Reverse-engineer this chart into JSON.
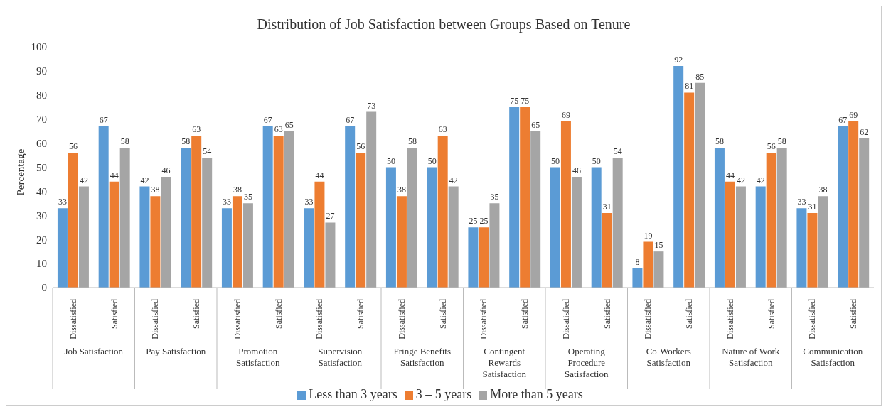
{
  "chart_data": {
    "type": "bar",
    "title": "Distribution of Job Satisfaction between Groups Based on Tenure",
    "ylabel": "Percentage",
    "categories": [
      "Dissatisfied",
      "Satisfied",
      "Dissatisfied",
      "Satisfied",
      "Dissatisfied",
      "Satisfied",
      "Dissatisfied",
      "Satisfied",
      "Dissatisfied",
      "Satisfied",
      "Dissatisfied",
      "Satisfied",
      "Dissatisfied",
      "Satisfied",
      "Dissatisfied",
      "Satisfied",
      "Dissatisfied",
      "Satisfied",
      "Dissatisfied",
      "Satisfied"
    ],
    "annotations": [
      "Job Satisfaction",
      "Pay Satisfaction",
      "Promotion Satisfaction",
      "Supervision Satisfaction",
      "Fringe Benefits Satisfaction",
      "Contingent Rewards Satisfaction",
      "Operating Procedure Satisfaction",
      "Co-Workers Satisfaction",
      "Nature of Work Satisfaction",
      "Communication Satisfaction"
    ],
    "series": [
      {
        "name": "Less than 3 years",
        "color": "#5b9bd5",
        "values": [
          33,
          67,
          42,
          58,
          33,
          67,
          33,
          67,
          50,
          50,
          25,
          75,
          50,
          50,
          8,
          92,
          58,
          42,
          33,
          67
        ]
      },
      {
        "name": "3 – 5 years",
        "color": "#ed7d31",
        "values": [
          56,
          44,
          38,
          63,
          38,
          63,
          44,
          56,
          38,
          63,
          25,
          75,
          69,
          31,
          19,
          81,
          44,
          56,
          31,
          69
        ]
      },
      {
        "name": "More than 5 years",
        "color": "#a5a5a5",
        "values": [
          42,
          58,
          46,
          54,
          35,
          65,
          27,
          73,
          58,
          42,
          35,
          65,
          46,
          54,
          15,
          85,
          42,
          58,
          38,
          62
        ]
      }
    ],
    "ylim": [
      0,
      100
    ],
    "yticks": [
      0,
      10,
      20,
      30,
      40,
      50,
      60,
      70,
      80,
      90,
      100
    ],
    "data_labels": true,
    "legend": "bottom",
    "grid": false
  }
}
